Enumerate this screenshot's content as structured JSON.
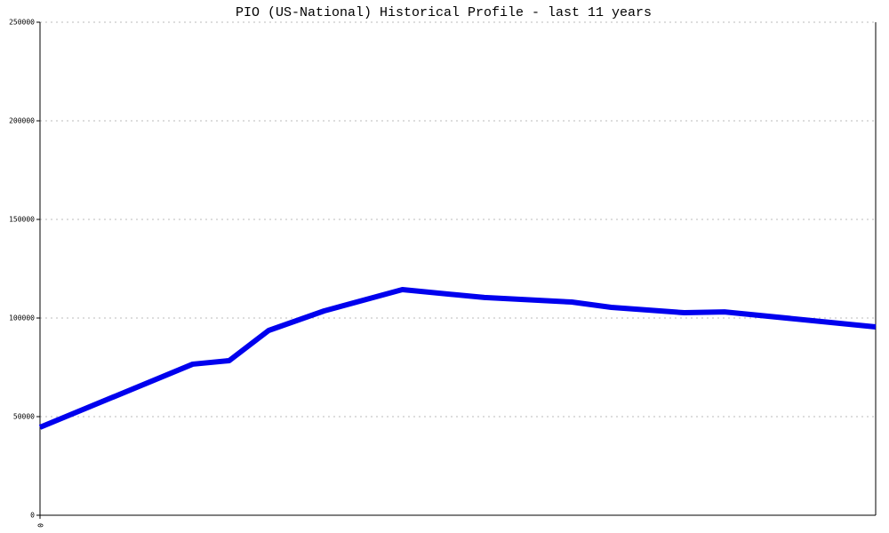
{
  "chart_data": {
    "type": "line",
    "title": "PIO (US-National) Historical Profile - last 11 years",
    "x": [
      0,
      2.01,
      2.49,
      3.01,
      3.74,
      4.77,
      5.85,
      7.0,
      7.52,
      8.48,
      9.01,
      11
    ],
    "series": [
      {
        "name": "PIO",
        "color": "#0000ee",
        "values": [
          44600,
          76600,
          78400,
          93700,
          103600,
          114400,
          110400,
          108100,
          105400,
          102700,
          103100,
          95500
        ]
      }
    ],
    "xlim": [
      0,
      11
    ],
    "xticks": [
      0
    ],
    "ylim": [
      0,
      250000
    ],
    "yticks": [
      0,
      50000,
      100000,
      150000,
      200000,
      250000
    ],
    "grid": true
  }
}
